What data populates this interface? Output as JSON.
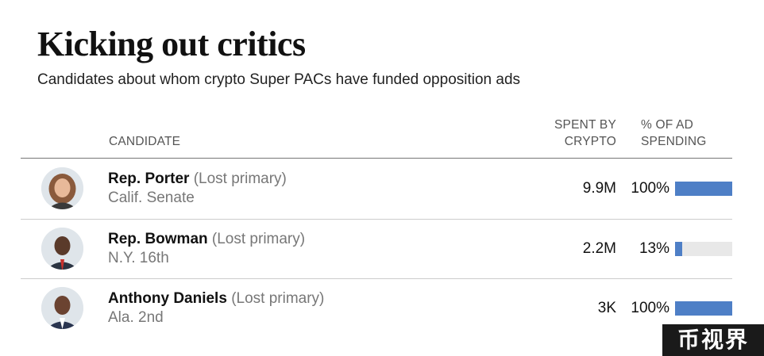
{
  "chart_data": {
    "type": "table",
    "title": "Kicking out critics",
    "subtitle": "Candidates about whom crypto Super PACs have funded opposition ads",
    "columns": {
      "candidate": "CANDIDATE",
      "spent": [
        "SPENT BY",
        "CRYPTO"
      ],
      "pct": [
        "% OF AD",
        "SPENDING"
      ]
    },
    "rows": [
      {
        "name": "Rep. Porter",
        "note": "(Lost primary)",
        "office": "Calif. Senate",
        "spent": "9.9M",
        "pct_label": "100%",
        "pct": 100,
        "avatar": "avatar-porter"
      },
      {
        "name": "Rep. Bowman",
        "note": "(Lost primary)",
        "office": "N.Y. 16th",
        "spent": "2.2M",
        "pct_label": "13%",
        "pct": 13,
        "avatar": "avatar-bowman"
      },
      {
        "name": "Anthony Daniels",
        "note": "(Lost primary)",
        "office": "Ala. 2nd",
        "spent": "3K",
        "pct_label": "100%",
        "pct": 100,
        "avatar": "avatar-daniels"
      }
    ],
    "bar_color": "#4e7fc6",
    "track_color": "#e8e8e8"
  },
  "watermark": "币视界"
}
